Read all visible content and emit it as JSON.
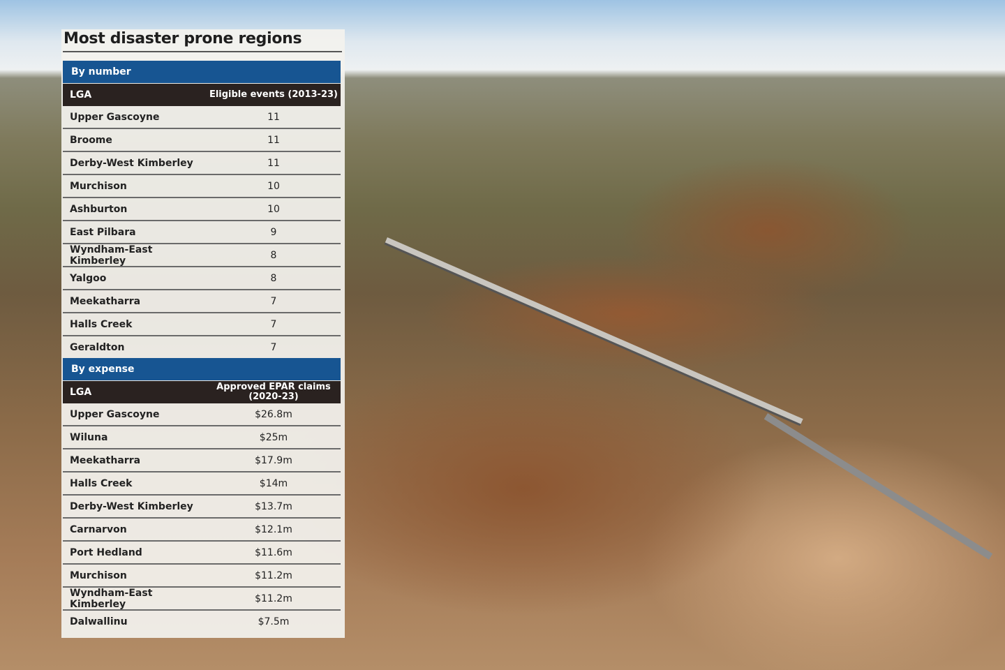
{
  "title": "Most disaster prone regions",
  "colors": {
    "section_header": "#175592",
    "column_header": "#2a2220"
  },
  "chart_data": [
    {
      "type": "table",
      "title": "By number",
      "columns": [
        "LGA",
        "Eligible events (2013-23)"
      ],
      "rows": [
        [
          "Upper Gascoyne",
          "11"
        ],
        [
          "Broome",
          "11"
        ],
        [
          "Derby-West Kimberley",
          "11"
        ],
        [
          "Murchison",
          "10"
        ],
        [
          "Ashburton",
          "10"
        ],
        [
          "East Pilbara",
          "9"
        ],
        [
          "Wyndham-East Kimberley",
          "8"
        ],
        [
          "Yalgoo",
          "8"
        ],
        [
          "Meekatharra",
          "7"
        ],
        [
          "Halls Creek",
          "7"
        ],
        [
          "Geraldton",
          "7"
        ]
      ]
    },
    {
      "type": "table",
      "title": "By expense",
      "columns": [
        "LGA",
        "Approved EPAR claims (2020-23)"
      ],
      "rows": [
        [
          "Upper Gascoyne",
          "$26.8m"
        ],
        [
          "Wiluna",
          "$25m"
        ],
        [
          "Meekatharra",
          "$17.9m"
        ],
        [
          "Halls Creek",
          "$14m"
        ],
        [
          "Derby-West Kimberley",
          "$13.7m"
        ],
        [
          "Carnarvon",
          "$12.1m"
        ],
        [
          "Port Hedland",
          "$11.6m"
        ],
        [
          "Murchison",
          "$11.2m"
        ],
        [
          "Wyndham-East Kimberley",
          "$11.2m"
        ],
        [
          "Dalwallinu",
          "$7.5m"
        ]
      ]
    }
  ]
}
